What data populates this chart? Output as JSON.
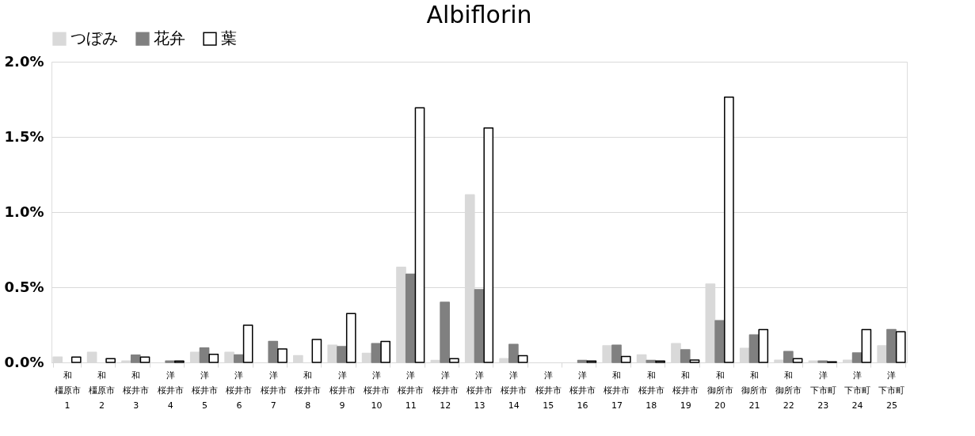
{
  "chart_data": {
    "type": "bar",
    "title": "Albiflorin",
    "categories": [
      "和橿原市1",
      "和橿原市2",
      "和桜井市3",
      "洋桜井市4",
      "洋桜井市5",
      "洋桜井市6",
      "洋桜井市7",
      "和桜井市8",
      "洋桜井市9",
      "洋桜井市10",
      "洋桜井市11",
      "洋桜井市12",
      "洋桜井市13",
      "洋桜井市14",
      "洋桜井市15",
      "洋桜井市16",
      "和桜井市17",
      "和桜井市18",
      "和桜井市19",
      "和御所市20",
      "和御所市21",
      "和御所市22",
      "洋下市町23",
      "洋下市町24",
      "洋下市町25"
    ],
    "series": [
      {
        "name": "つぼみ",
        "color": "#d9d9d9",
        "values": [
          0.036,
          0.067,
          0.009,
          0,
          0.067,
          0.067,
          0,
          0.045,
          0.114,
          0.06,
          0.633,
          0.013,
          1.115,
          0.025,
          0,
          0,
          0.111,
          0.05,
          0.125,
          0.521,
          0.093,
          0.014,
          0.009,
          0.014,
          0.111
        ]
      },
      {
        "name": "花弁",
        "color": "#808080",
        "values": [
          0,
          0,
          0.049,
          0.009,
          0.096,
          0.05,
          0.139,
          0,
          0.105,
          0.125,
          0.587,
          0.4,
          0.484,
          0.12,
          0,
          0.013,
          0.115,
          0.013,
          0.084,
          0.278,
          0.183,
          0.072,
          0.009,
          0.063,
          0.219
        ]
      },
      {
        "name": "葉",
        "color": "#ffffff",
        "values": [
          0.036,
          0.025,
          0.036,
          0.009,
          0.054,
          0.247,
          0.09,
          0.153,
          0.325,
          0.139,
          1.694,
          0.025,
          1.559,
          0.045,
          0,
          0.009,
          0.039,
          0.009,
          0.016,
          1.765,
          0.219,
          0.025,
          0.004,
          0.219,
          0.204
        ]
      }
    ],
    "ylim": [
      0,
      2.0
    ],
    "yticks": [
      {
        "value": 0,
        "label": "0.0%"
      },
      {
        "value": 0.5,
        "label": "0.5%"
      },
      {
        "value": 1.0,
        "label": "1.0%"
      },
      {
        "value": 1.5,
        "label": "1.5%"
      },
      {
        "value": 2.0,
        "label": "2.0%"
      }
    ],
    "grid": "y",
    "legend": "top"
  }
}
